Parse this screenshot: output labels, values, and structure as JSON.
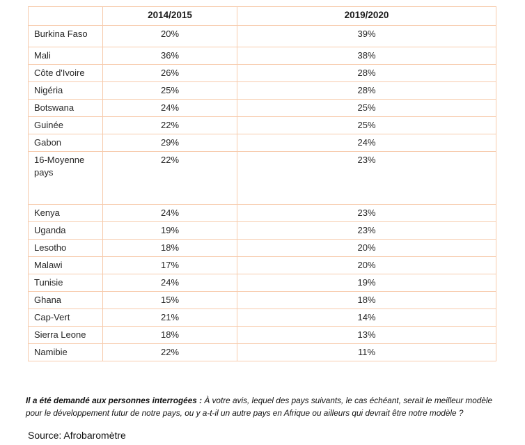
{
  "table": {
    "columns": [
      "",
      "2014/2015",
      "2019/2020"
    ],
    "rows": [
      {
        "country": "Burkina Faso",
        "v2014": "20%",
        "v2019": "39%"
      },
      {
        "country": "Mali",
        "v2014": "36%",
        "v2019": "38%"
      },
      {
        "country": "Côte d'Ivoire",
        "v2014": "26%",
        "v2019": "28%"
      },
      {
        "country": "Nigéria",
        "v2014": "25%",
        "v2019": "28%"
      },
      {
        "country": "Botswana",
        "v2014": "24%",
        "v2019": "25%"
      },
      {
        "country": "Guinée",
        "v2014": "22%",
        "v2019": "25%"
      },
      {
        "country": "Gabon",
        "v2014": "29%",
        "v2019": "24%"
      },
      {
        "country": "16-Moyenne pays",
        "v2014": "22%",
        "v2019": "23%"
      },
      {
        "country": "Kenya",
        "v2014": "24%",
        "v2019": "23%"
      },
      {
        "country": "Uganda",
        "v2014": "19%",
        "v2019": "23%"
      },
      {
        "country": "Lesotho",
        "v2014": "18%",
        "v2019": "20%"
      },
      {
        "country": "Malawi",
        "v2014": "17%",
        "v2019": "20%"
      },
      {
        "country": "Tunisie",
        "v2014": "24%",
        "v2019": "19%"
      },
      {
        "country": "Ghana",
        "v2014": "15%",
        "v2019": "18%"
      },
      {
        "country": "Cap-Vert",
        "v2014": "21%",
        "v2019": "14%"
      },
      {
        "country": "Sierra Leone",
        "v2014": "18%",
        "v2019": "13%"
      },
      {
        "country": "Namibie",
        "v2014": "22%",
        "v2019": "11%"
      }
    ]
  },
  "note": {
    "lead": "Il a été demandé aux personnes interrogées : ",
    "body": "À votre avis, lequel des pays suivants, le cas échéant, serait le meilleur modèle pour le développement futur de notre pays, ou y a-t-il un autre pays en Afrique ou ailleurs qui devrait être notre modèle ?"
  },
  "source": "Source: Afrobaromètre",
  "colors": {
    "table_border": "#f7cbac",
    "text": "#1f1f1f"
  }
}
